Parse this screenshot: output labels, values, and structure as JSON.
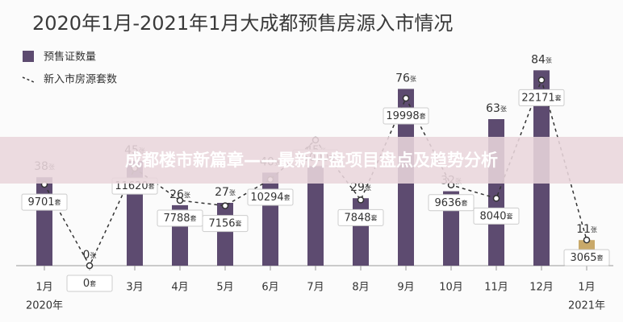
{
  "chart_data": {
    "type": "bar_line",
    "title": "2020年1月-2021年1月大成都预售房源入市情况",
    "banner": "成都楼市新篇章——最新开盘项目盘点及趋势分析",
    "categories": [
      "1月",
      "2月",
      "3月",
      "4月",
      "5月",
      "6月",
      "7月",
      "8月",
      "9月",
      "10月",
      "11月",
      "12月",
      "1月"
    ],
    "year_labels": [
      "2020年",
      null,
      null,
      null,
      null,
      null,
      null,
      null,
      null,
      null,
      null,
      null,
      "2021年"
    ],
    "series": [
      {
        "name": "预售证数量",
        "type": "bar",
        "color": "#5d4b70",
        "unit": "张",
        "colors": [
          "#5d4b70",
          "#5d4b70",
          "#5d4b70",
          "#5d4b70",
          "#5d4b70",
          "#5d4b70",
          "#5d4b70",
          "#5d4b70",
          "#5d4b70",
          "#5d4b70",
          "#5d4b70",
          "#5d4b70",
          "#c9a96a"
        ],
        "values": [
          38,
          0,
          45,
          26,
          27,
          40,
          45,
          29,
          76,
          32,
          63,
          84,
          11
        ]
      },
      {
        "name": "新入市房源套数",
        "type": "line",
        "axis": "y2",
        "color": "#333333",
        "unit": "套",
        "values": [
          9701,
          0,
          11620,
          7788,
          7156,
          10294,
          15000,
          7848,
          19998,
          9636,
          8040,
          22171,
          3065
        ]
      }
    ],
    "ylim": [
      0,
      90
    ],
    "y2lim": [
      0,
      25000
    ]
  }
}
